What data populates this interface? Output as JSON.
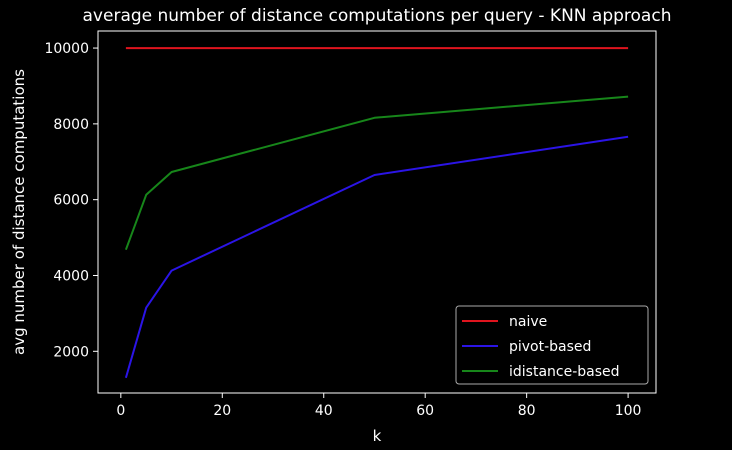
{
  "chart_data": {
    "type": "line",
    "title": "average number of distance computations per query - KNN approach",
    "xlabel": "k",
    "ylabel": "avg number of distance computations",
    "x": [
      1,
      5,
      10,
      50,
      100
    ],
    "xlim": [
      -4.5,
      105.5
    ],
    "ylim": [
      900,
      10450
    ],
    "xticks": [
      0,
      20,
      40,
      60,
      80,
      100
    ],
    "yticks": [
      2000,
      4000,
      6000,
      8000,
      10000
    ],
    "grid": false,
    "legend_position": "lower-right",
    "series": [
      {
        "name": "naive",
        "color": "#e0141e",
        "values": [
          10000,
          10000,
          10000,
          10000,
          10000
        ]
      },
      {
        "name": "pivot-based",
        "color": "#2b14e6",
        "values": [
          1300,
          3150,
          4130,
          6650,
          7660
        ]
      },
      {
        "name": "idistance-based",
        "color": "#17861a",
        "values": [
          4680,
          6130,
          6730,
          8160,
          8720
        ]
      }
    ]
  }
}
